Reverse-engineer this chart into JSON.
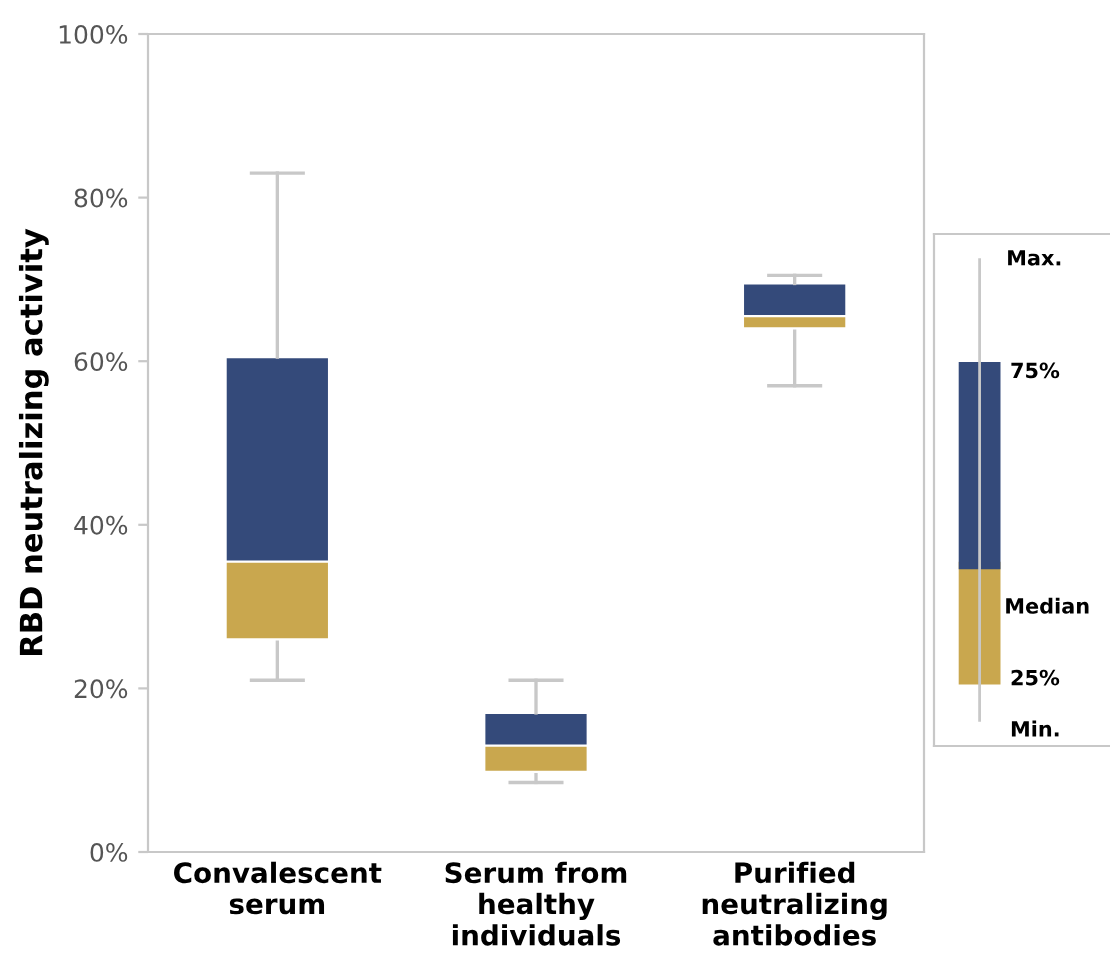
{
  "chart_data": {
    "type": "box",
    "ylabel": "RBD neutralizing activity",
    "categories": [
      "Convalescent\nserum",
      "Serum from\nhealthy\nindividuals",
      "Purified\nneutralizing\nantibodies"
    ],
    "boxes": [
      {
        "low": 21,
        "q1": 26,
        "median": 35.5,
        "q3": 60.5,
        "high": 83
      },
      {
        "low": 8.5,
        "q1": 9.8,
        "median": 13,
        "q3": 17,
        "high": 21
      },
      {
        "low": 57,
        "q1": 64,
        "median": 65.5,
        "q3": 69.5,
        "high": 70.5
      }
    ],
    "colors": [
      "#344a7a",
      "#344a7a",
      "#344a7a"
    ],
    "color": "#c9a74e",
    "ylim": [
      0,
      100
    ],
    "yticks": [
      {
        "value": 0,
        "label": "0%"
      },
      {
        "value": 20,
        "label": "20%"
      },
      {
        "value": 40,
        "label": "40%"
      },
      {
        "value": 60,
        "label": "60%"
      },
      {
        "value": 80,
        "label": "80%"
      },
      {
        "value": 100,
        "label": "100%"
      }
    ],
    "grid": false,
    "annotations": [
      "Max.",
      "75%",
      "Median",
      "25%",
      "Min."
    ]
  }
}
